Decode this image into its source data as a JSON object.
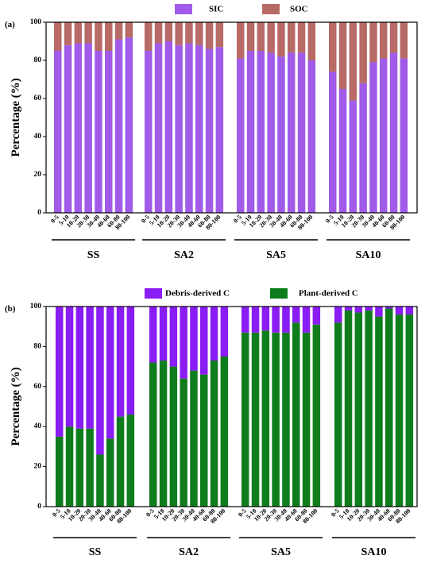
{
  "chart_data": [
    {
      "type": "bar",
      "stacked": true,
      "panel_label": "(a)",
      "ylabel": "Percentage (%)",
      "ylim": [
        0,
        100
      ],
      "yticks": [
        "0",
        "20",
        "40",
        "60",
        "80",
        "100"
      ],
      "legend_position": "top",
      "groups": [
        "SS",
        "SA2",
        "SA5",
        "SA10"
      ],
      "categories": [
        "0-5",
        "5-10",
        "10-20",
        "20-30",
        "30-40",
        "40-60",
        "60-80",
        "80-100"
      ],
      "series": [
        {
          "name": "SIC",
          "color": "#a05be8",
          "values": [
            [
              85,
              88,
              89,
              89,
              85,
              85,
              91,
              92
            ],
            [
              85,
              89,
              90,
              88,
              89,
              88,
              86,
              87
            ],
            [
              81,
              85,
              85,
              84,
              82,
              84,
              84,
              80
            ],
            [
              74,
              65,
              59,
              68,
              79,
              81,
              84,
              81
            ]
          ]
        },
        {
          "name": "SOC",
          "color": "#b86a66",
          "values": [
            [
              15,
              12,
              11,
              11,
              15,
              15,
              9,
              8
            ],
            [
              15,
              11,
              10,
              12,
              11,
              12,
              14,
              13
            ],
            [
              19,
              15,
              15,
              16,
              18,
              16,
              16,
              20
            ],
            [
              26,
              35,
              41,
              32,
              21,
              19,
              16,
              19
            ]
          ]
        }
      ]
    },
    {
      "type": "bar",
      "stacked": true,
      "panel_label": "(b)",
      "ylabel": "Percentage (%)",
      "ylim": [
        0,
        100
      ],
      "yticks": [
        "0",
        "20",
        "40",
        "60",
        "80",
        "100"
      ],
      "legend_position": "top",
      "groups": [
        "SS",
        "SA2",
        "SA5",
        "SA10"
      ],
      "categories": [
        "0-5",
        "5-10",
        "10-20",
        "20-30",
        "30-40",
        "40-60",
        "60-80",
        "80-100"
      ],
      "series": [
        {
          "name": "Plant-derived C",
          "color": "#0f7d1c",
          "values": [
            [
              35,
              40,
              39,
              39,
              26,
              34,
              45,
              46
            ],
            [
              72,
              73,
              70,
              64,
              68,
              66,
              73,
              75
            ],
            [
              87,
              87,
              88,
              87,
              87,
              92,
              87,
              91
            ],
            [
              92,
              98,
              97,
              98,
              95,
              99,
              96,
              96
            ]
          ]
        },
        {
          "name": "Debris-derived C",
          "color": "#8a1cf4",
          "values": [
            [
              65,
              60,
              61,
              61,
              74,
              66,
              55,
              54
            ],
            [
              28,
              27,
              30,
              36,
              32,
              34,
              27,
              25
            ],
            [
              13,
              13,
              12,
              13,
              13,
              8,
              13,
              9
            ],
            [
              8,
              2,
              3,
              2,
              5,
              1,
              4,
              4
            ]
          ]
        }
      ]
    }
  ]
}
